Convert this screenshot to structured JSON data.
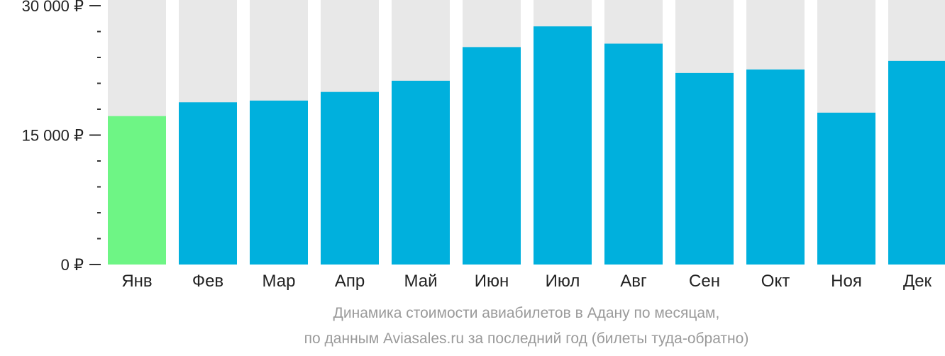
{
  "chart_data": {
    "type": "bar",
    "categories": [
      "Янв",
      "Фев",
      "Мар",
      "Апр",
      "Май",
      "Июн",
      "Июл",
      "Авг",
      "Сен",
      "Окт",
      "Ноя",
      "Дек"
    ],
    "values": [
      17200,
      18800,
      19000,
      20000,
      21300,
      25200,
      27600,
      25600,
      22200,
      22600,
      17600,
      23600
    ],
    "ylim": [
      0,
      30000
    ],
    "y_tick_labels": [
      "0 ₽",
      "15 000 ₽",
      "30 000 ₽"
    ],
    "y_tick_values": [
      0,
      15000,
      30000
    ],
    "y_minor_step": 3000,
    "highlight_index": 0,
    "colors": {
      "bar": "#00b0dd",
      "highlight": "#6ef585",
      "background_bar": "#e8e8e8",
      "axis": "#333333"
    },
    "grid": false,
    "caption_line1": "Динамика стоимости авиабилетов в Адану по месяцам,",
    "caption_line2": "по данным Aviasales.ru за последний год (билеты туда-обратно)"
  }
}
